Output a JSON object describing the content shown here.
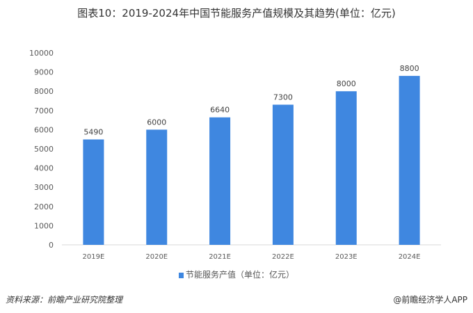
{
  "chart_data": {
    "type": "bar",
    "title": "图表10：2019-2024年中国节能服务产值规模及其趋势(单位：亿元)",
    "categories": [
      "2019E",
      "2020E",
      "2021E",
      "2022E",
      "2023E",
      "2024E"
    ],
    "series": [
      {
        "name": "节能服务产值（单位：亿元）",
        "values": [
          5490,
          6000,
          6640,
          7300,
          8000,
          8800
        ]
      }
    ],
    "ylim": [
      0,
      10000
    ],
    "yticks": [
      0,
      1000,
      2000,
      3000,
      4000,
      5000,
      6000,
      7000,
      8000,
      9000,
      10000
    ],
    "grid": false,
    "legend": "bottom",
    "bar_color": "#3f87e0"
  },
  "footer": {
    "source": "资料来源：前瞻产业研究院整理",
    "credit": "@前瞻经济学人APP"
  }
}
